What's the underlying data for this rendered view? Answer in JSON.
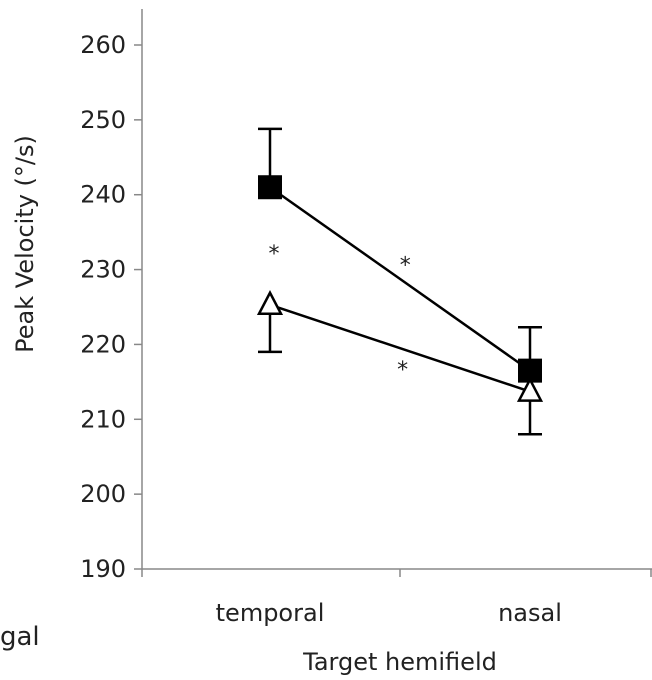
{
  "chart_data": {
    "type": "line",
    "title": "",
    "xlabel": "Target hemifield",
    "ylabel": "Peak Velocity (°/s)",
    "categories": [
      "temporal",
      "nasal"
    ],
    "ylim": [
      190,
      260
    ],
    "yticks": [
      190,
      200,
      210,
      220,
      230,
      240,
      250,
      260
    ],
    "grid": false,
    "series": [
      {
        "marker": "filled-square",
        "color": "#000000",
        "values": [
          241,
          216.5
        ],
        "error_upper": [
          7.8,
          5.8
        ]
      },
      {
        "marker": "open-triangle",
        "color": "#000000",
        "values": [
          225.3,
          213.7
        ],
        "error_lower": [
          6.3,
          5.7
        ]
      }
    ],
    "annotations": [
      {
        "text": "*",
        "position": "between markers at temporal"
      },
      {
        "text": "*",
        "position": "along filled-square line"
      },
      {
        "text": "*",
        "position": "along open-triangle line"
      }
    ],
    "cropped_left_text": "gal"
  }
}
